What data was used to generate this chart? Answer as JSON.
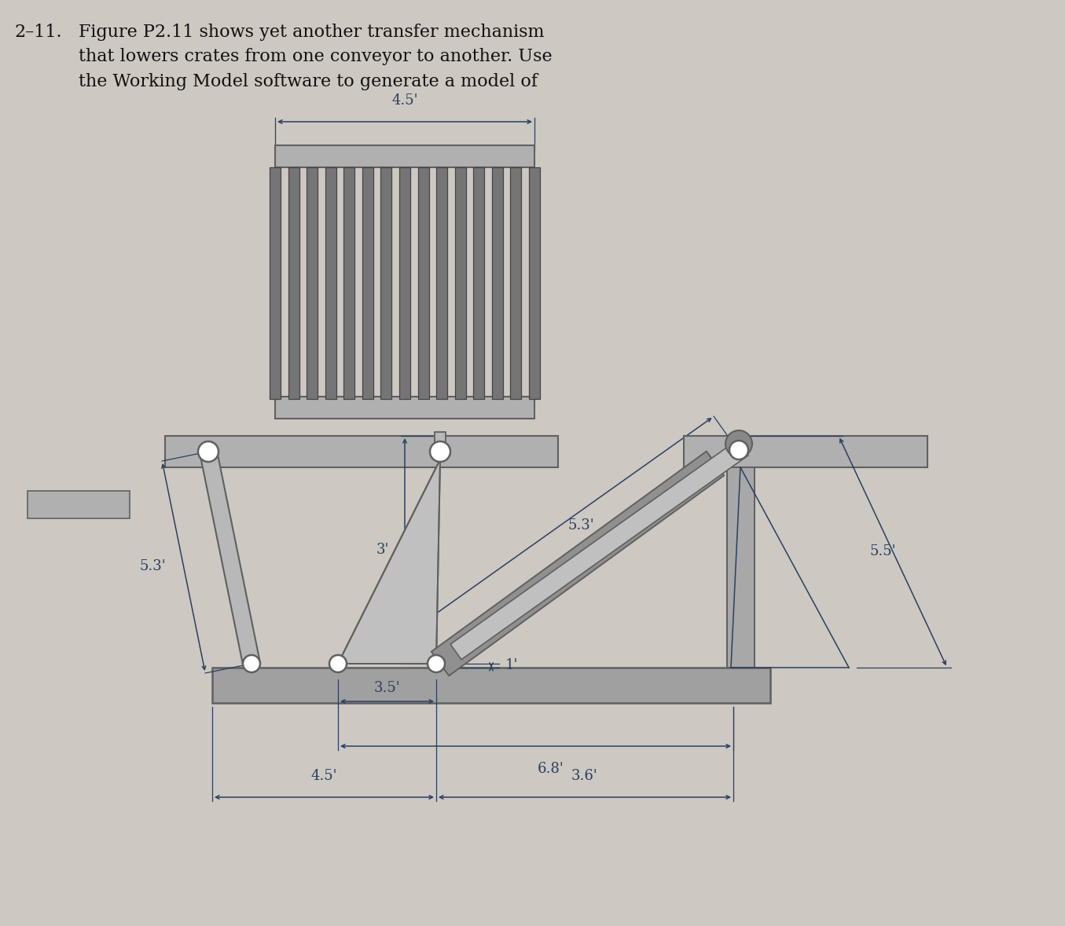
{
  "bg_color": "#cdc8c2",
  "title_fontsize": 16,
  "dim_color": "#2a4060",
  "text_color": "#111111",
  "dim_fontsize": 13,
  "gray_body": "#a8a8a8",
  "gray_dark": "#606060",
  "gray_med": "#888888",
  "gray_light": "#c8c8c8",
  "gray_beam": "#b0b0b0",
  "gray_slat": "#787878",
  "white": "#ffffff",
  "labels": {
    "title_num": "2–11.",
    "title_body": "Figure P2.11 shows yet another transfer mechanism\nthat lowers crates from one conveyor to another. Use\nthe Working Model software to generate a model of",
    "dim_45_top": "4.5'",
    "dim_53_left": "5.3'",
    "dim_3": "3'",
    "dim_35": "3.5'",
    "dim_53_cyl": "5.3'",
    "dim_1": "1'",
    "dim_68": "6.8'",
    "dim_45_bot": "4.5'",
    "dim_36": "3.6'",
    "dim_55": "5.5'"
  }
}
